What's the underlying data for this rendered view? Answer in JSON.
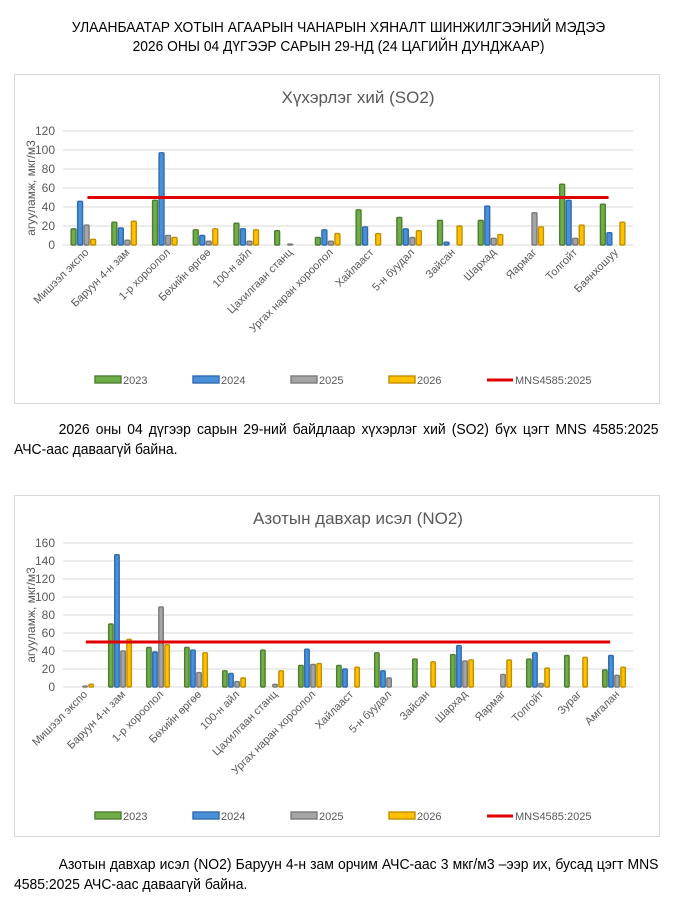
{
  "header": {
    "line1": "УЛААНБААТАР ХОТЫН АГААРЫН ЧАНАРЫН ХЯНАЛТ ШИНЖИЛГЭЭНИЙ МЭДЭЭ",
    "line2": "2026 ОНЫ 04 ДҮГЭЭР САРЫН 29-НД (24 ЦАГИЙН ДУНДЖААР)"
  },
  "paragraphs": {
    "so2": "2026 оны 04 дүгээр сарын 29-ний байдлаар хүхэрлэг хий (SO2) бүх цэгт MNS 4585:2025 АЧС-аас даваагүй байна.",
    "no2": "Азотын давхар исэл (NO2) Баруун 4-н зам орчим АЧС-аас 3 мкг/м3 –ээр их, бусад цэгт MNS 4585:2025 АЧС-аас даваагүй байна."
  },
  "colors": {
    "2023": "#70ad47",
    "2023_border": "#4e7d32",
    "2024": "#4a90d9",
    "2024_border": "#2e6bb0",
    "2025": "#a5a5a5",
    "2025_border": "#7a7a7a",
    "2026": "#ffc000",
    "2026_border": "#c09000",
    "standard": "#e00000",
    "grid": "#d9d9d9"
  },
  "chart_data": [
    {
      "id": "so2",
      "type": "bar",
      "title": "Хүхэрлэг хий (SO2)",
      "xlabel": "",
      "ylabel": "агууламж, мкг/м3",
      "ylim": [
        0,
        120
      ],
      "yticks": [
        0,
        20,
        40,
        60,
        80,
        100,
        120
      ],
      "grid": true,
      "legend": "bottom",
      "categories": [
        "Мишээл экспо",
        "Баруун 4-н зам",
        "1-р хороолол",
        "Бөхийн өргөө",
        "100-н айл",
        "Цахилгаан станц",
        "Ургах наран хороолол",
        "Хайлааст",
        "5-н буудал",
        "Зайсан",
        "Шархад",
        "Яармаг",
        "Толгойт",
        "Баянхошуу"
      ],
      "series": [
        {
          "name": "2023",
          "values": [
            17,
            24,
            47,
            16,
            23,
            15,
            8,
            37,
            29,
            26,
            26,
            null,
            64,
            43
          ]
        },
        {
          "name": "2024",
          "values": [
            46,
            18,
            97,
            10,
            17,
            null,
            16,
            19,
            17,
            3,
            41,
            null,
            47,
            13
          ]
        },
        {
          "name": "2025",
          "values": [
            21,
            5,
            10,
            4,
            4,
            1,
            4,
            null,
            8,
            null,
            7,
            34,
            7,
            null
          ]
        },
        {
          "name": "2026",
          "values": [
            6,
            25,
            8,
            17,
            16,
            null,
            12,
            12,
            15,
            20,
            11,
            19,
            21,
            24
          ]
        }
      ],
      "standard": {
        "name": "MNS4585:2025",
        "value": 50
      }
    },
    {
      "id": "no2",
      "type": "bar",
      "title": "Азотын давхар исэл (NO2)",
      "xlabel": "",
      "ylabel": "агууламж, мкг/м3",
      "ylim": [
        0,
        160
      ],
      "yticks": [
        0,
        20,
        40,
        60,
        80,
        100,
        120,
        140,
        160
      ],
      "grid": true,
      "legend": "bottom",
      "categories": [
        "Мишээл экспо",
        "Баруун 4-н зам",
        "1-р хороолол",
        "Бөхийн өргөө",
        "100-н айл",
        "Цахилгаан станц",
        "Ургах наран хороолол",
        "Хайлааст",
        "5-н буудал",
        "Зайсан",
        "Шархад",
        "Яармаг",
        "Толгойт",
        "Зураг",
        "Амгалан"
      ],
      "series": [
        {
          "name": "2023",
          "values": [
            null,
            70,
            44,
            44,
            18,
            41,
            24,
            24,
            38,
            31,
            36,
            null,
            31,
            35,
            19
          ]
        },
        {
          "name": "2024",
          "values": [
            null,
            147,
            39,
            41,
            15,
            null,
            42,
            20,
            18,
            null,
            46,
            null,
            38,
            null,
            35
          ]
        },
        {
          "name": "2025",
          "values": [
            1,
            40,
            89,
            16,
            6,
            3,
            25,
            null,
            10,
            null,
            29,
            14,
            4,
            null,
            13
          ]
        },
        {
          "name": "2026",
          "values": [
            3,
            53,
            47,
            38,
            10,
            18,
            26,
            22,
            null,
            28,
            30,
            30,
            21,
            33,
            22
          ]
        }
      ],
      "standard": {
        "name": "MNS4585:2025",
        "value": 50
      }
    }
  ]
}
